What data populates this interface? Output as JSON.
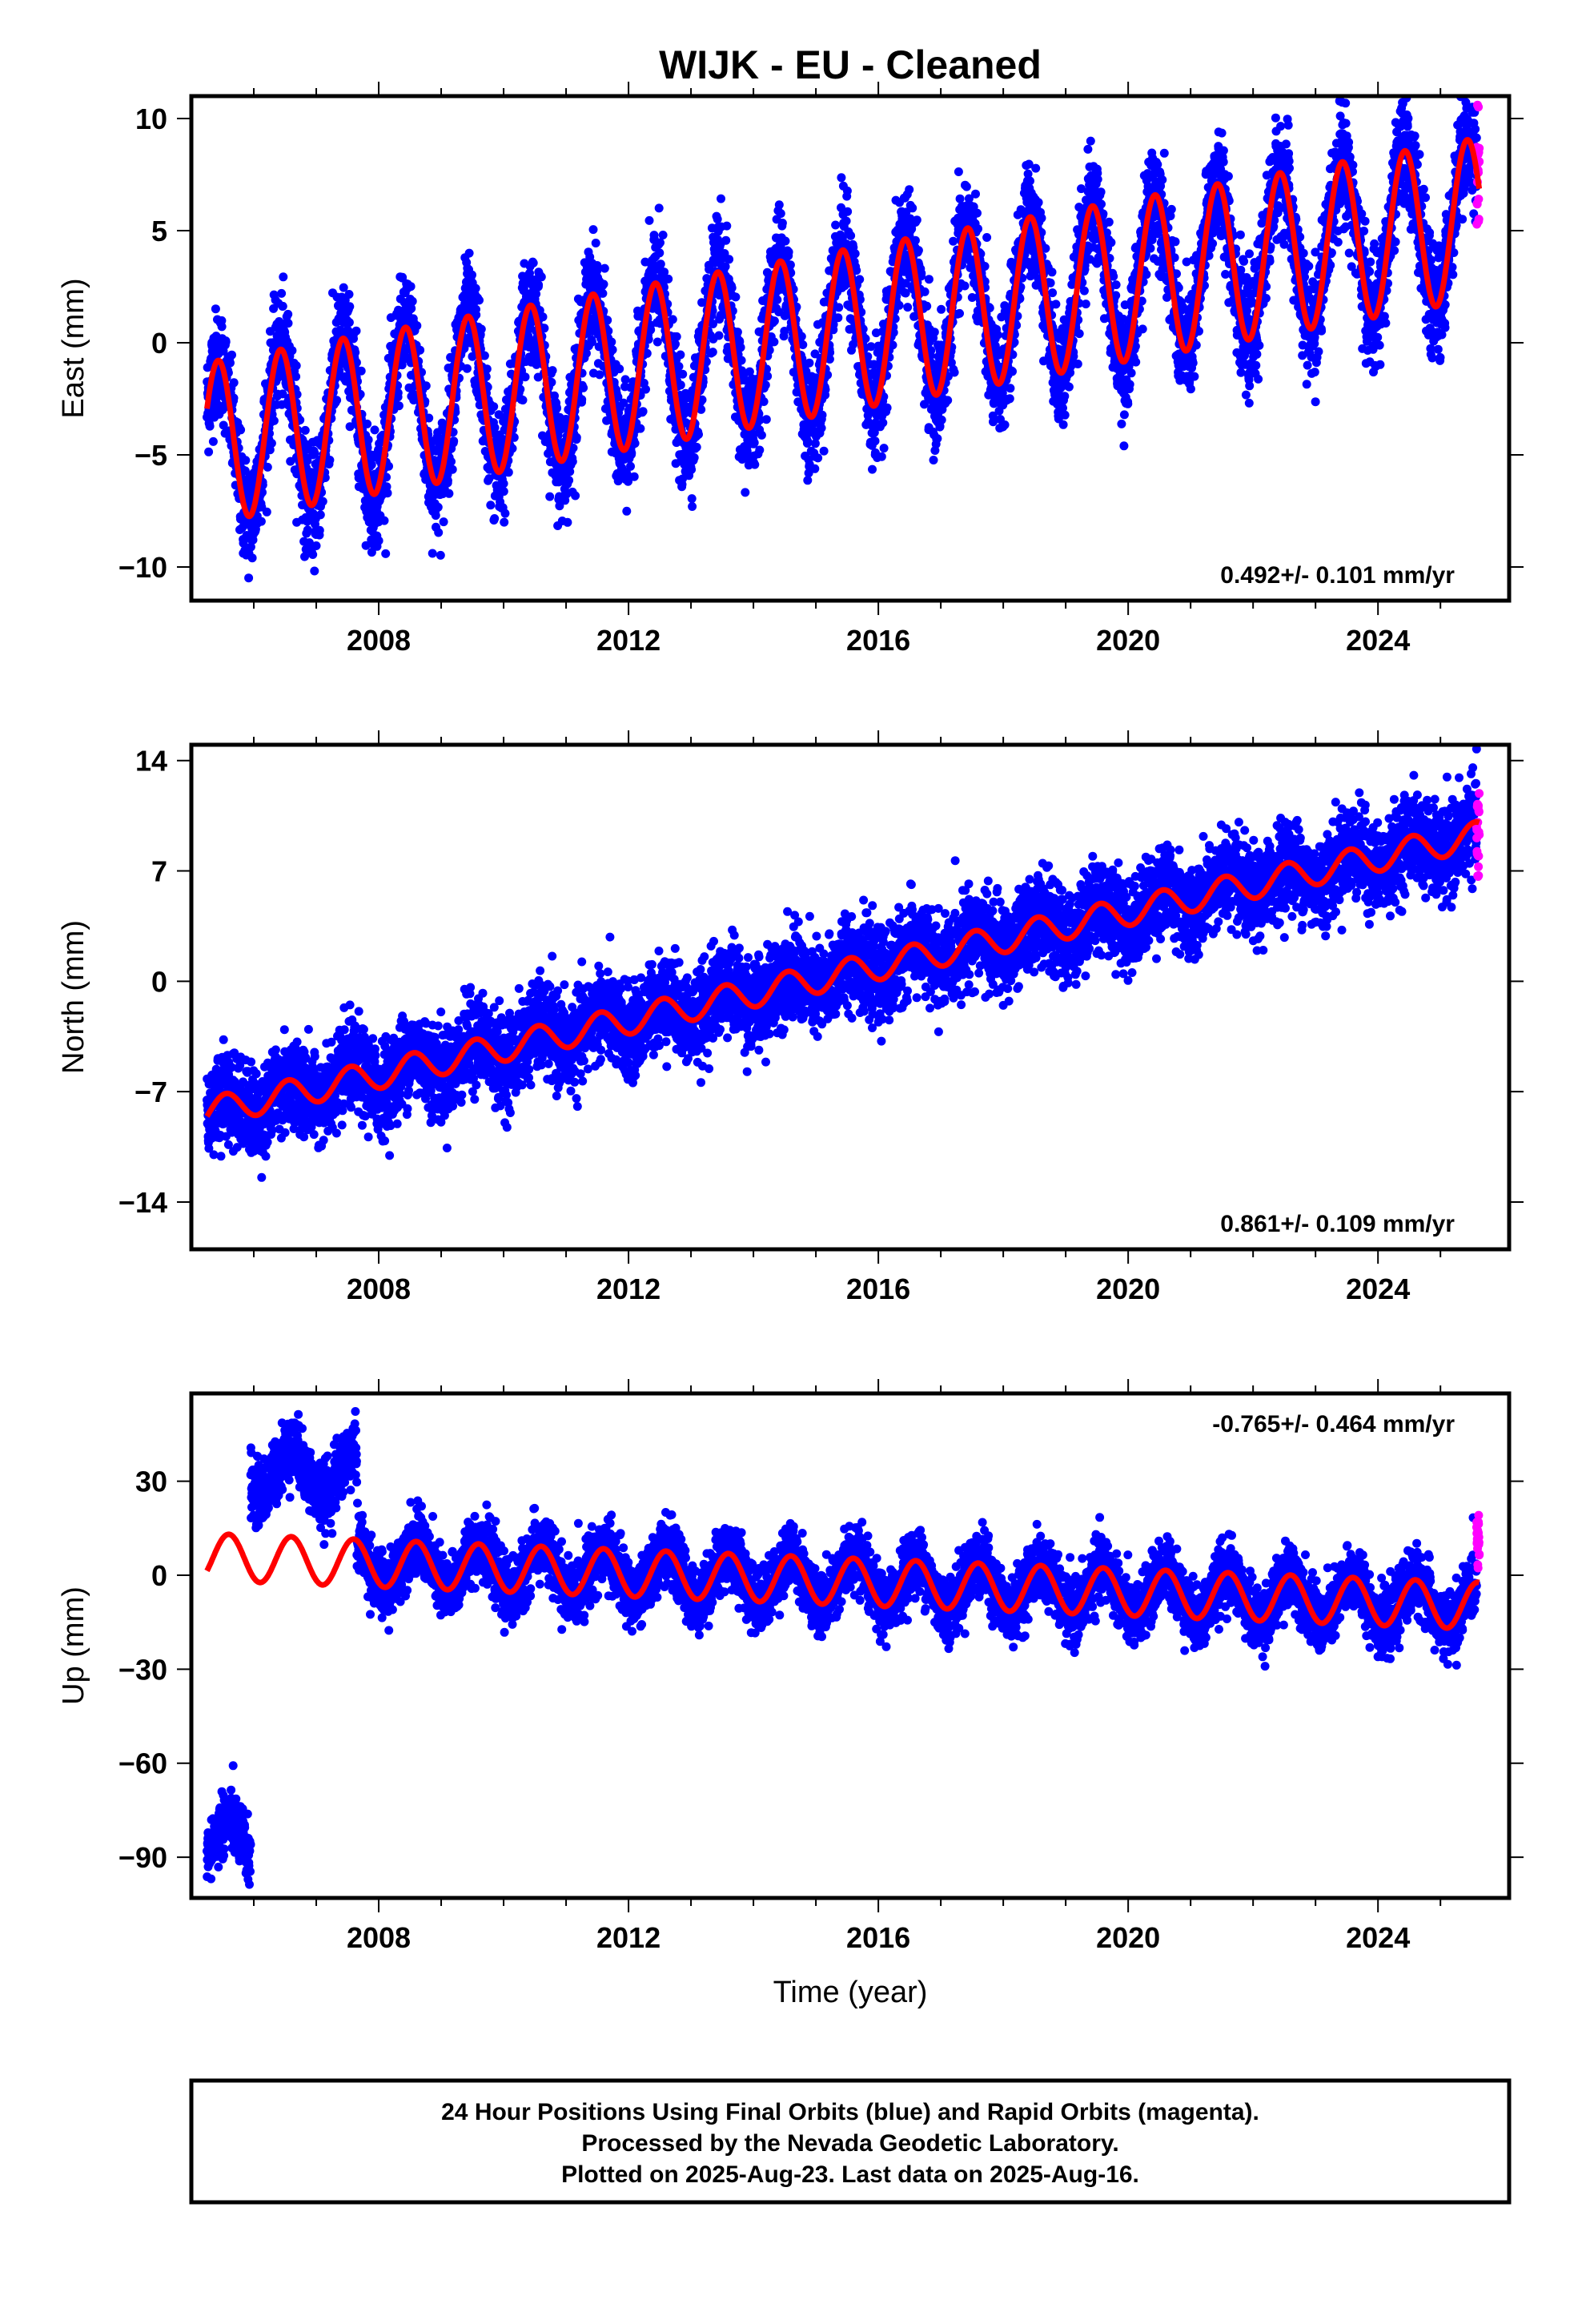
{
  "chart_data": {
    "type": "scatter",
    "title": "WIJK  - EU - Cleaned",
    "xlabel": "Time (year)",
    "xlim": [
      2005.0,
      2026.1
    ],
    "x_ticks": [
      "2008",
      "2012",
      "2016",
      "2020",
      "2024"
    ],
    "colors": {
      "final": "#0000ff",
      "rapid": "#ff00ff",
      "model": "#ff0000"
    },
    "panels": [
      {
        "ylabel": "East (mm)",
        "ylim": [
          -11.5,
          11
        ],
        "y_ticks": [
          "10",
          "5",
          "0",
          "−5",
          "−10"
        ],
        "rate_label": "0.492+/- 0.101 mm/yr",
        "rate_position": "bottom-right",
        "rate": 0.492,
        "data_start": 2005.25,
        "data_end": 2025.62,
        "model": {
          "intercept_2005": -4.6,
          "amplitude": 3.6,
          "phase_peak": 0.43
        },
        "scatter_sd": 1.2,
        "rapid_range": [
          5.2,
          10.6
        ]
      },
      {
        "ylabel": "North (mm)",
        "ylim": [
          -17,
          15
        ],
        "y_ticks": [
          "14",
          "7",
          "0",
          "−7",
          "−14"
        ],
        "rate_label": "0.861+/- 0.109 mm/yr",
        "rate_position": "bottom-right",
        "rate": 0.861,
        "data_start": 2005.25,
        "data_end": 2025.62,
        "model": {
          "intercept_2005": -8.5,
          "amplitude": 0.9,
          "phase_peak": 0.55
        },
        "scatter_sd": 1.4,
        "rapid_range": [
          6.5,
          12.5
        ]
      },
      {
        "ylabel": "Up (mm)",
        "ylim": [
          -103,
          58
        ],
        "y_ticks": [
          "30",
          "0",
          "−30",
          "−60",
          "−90"
        ],
        "rate_label": "-0.765+/- 0.464 mm/yr",
        "rate_position": "top-right",
        "rate": -0.765,
        "data_start": 2005.25,
        "data_end": 2025.62,
        "model": {
          "intercept_2005": 6.0,
          "amplitude": 7.5,
          "phase_peak": 0.6
        },
        "scatter_sd": 5.0,
        "segments": [
          {
            "start": 2005.25,
            "end": 2005.95,
            "offset": -91.0
          },
          {
            "start": 2005.95,
            "end": 2007.65,
            "offset": 28.0
          }
        ],
        "rapid_range": [
          2.0,
          19.5
        ]
      }
    ]
  },
  "footer": {
    "line1": "24 Hour Positions Using Final Orbits (blue) and Rapid Orbits (magenta).",
    "line2": "Processed by the Nevada Geodetic Laboratory.",
    "line3": "Plotted on 2025-Aug-23. Last data on 2025-Aug-16."
  }
}
